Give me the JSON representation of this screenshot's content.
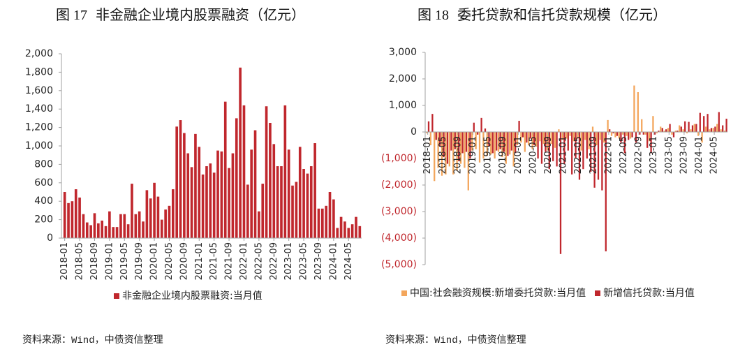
{
  "chart_data": [
    {
      "type": "bar",
      "figure_label": "图 17",
      "title": "非金融企业境内股票融资（亿元）",
      "x": [
        "2018-01",
        "2018-02",
        "2018-03",
        "2018-04",
        "2018-05",
        "2018-06",
        "2018-07",
        "2018-08",
        "2018-09",
        "2018-10",
        "2018-11",
        "2018-12",
        "2019-01",
        "2019-02",
        "2019-03",
        "2019-04",
        "2019-05",
        "2019-06",
        "2019-07",
        "2019-08",
        "2019-09",
        "2019-10",
        "2019-11",
        "2019-12",
        "2020-01",
        "2020-02",
        "2020-03",
        "2020-04",
        "2020-05",
        "2020-06",
        "2020-07",
        "2020-08",
        "2020-09",
        "2020-10",
        "2020-11",
        "2020-12",
        "2021-01",
        "2021-02",
        "2021-03",
        "2021-04",
        "2021-05",
        "2021-06",
        "2021-07",
        "2021-08",
        "2021-09",
        "2021-10",
        "2021-11",
        "2021-12",
        "2022-01",
        "2022-02",
        "2022-03",
        "2022-04",
        "2022-05",
        "2022-06",
        "2022-07",
        "2022-08",
        "2022-09",
        "2022-10",
        "2022-11",
        "2022-12",
        "2023-01",
        "2023-02",
        "2023-03",
        "2023-04",
        "2023-05",
        "2023-06",
        "2023-07",
        "2023-08",
        "2023-09",
        "2023-10",
        "2023-11",
        "2023-12",
        "2024-01",
        "2024-02",
        "2024-03",
        "2024-04",
        "2024-05",
        "2024-06",
        "2024-07",
        "2024-08"
      ],
      "x_tick_labels": [
        "2018-01",
        "2018-05",
        "2018-09",
        "2019-01",
        "2019-05",
        "2019-09",
        "2020-01",
        "2020-05",
        "2020-09",
        "2021-01",
        "2021-05",
        "2021-09",
        "2022-01",
        "2022-05",
        "2022-09",
        "2023-01",
        "2023-05",
        "2023-09",
        "2024-01",
        "2024-05"
      ],
      "ylim": [
        0,
        2000
      ],
      "y_ticks": [
        0,
        200,
        400,
        600,
        800,
        1000,
        1200,
        1400,
        1600,
        1800,
        2000
      ],
      "y_tick_labels": [
        "0",
        "200",
        "400",
        "600",
        "800",
        "1,000",
        "1,200",
        "1,400",
        "1,600",
        "1,800",
        "2,000"
      ],
      "series": [
        {
          "name": "非金融企业境内股票融资:当月值",
          "color": "#c0272d",
          "values": [
            500,
            380,
            400,
            530,
            440,
            260,
            170,
            140,
            270,
            160,
            190,
            130,
            290,
            120,
            120,
            260,
            260,
            150,
            590,
            260,
            290,
            180,
            520,
            430,
            600,
            450,
            200,
            310,
            350,
            530,
            1210,
            1280,
            1140,
            920,
            770,
            1130,
            990,
            690,
            780,
            810,
            710,
            950,
            940,
            1480,
            760,
            920,
            1300,
            1850,
            1440,
            580,
            960,
            1170,
            290,
            590,
            1430,
            1250,
            1020,
            780,
            780,
            1440,
            960,
            570,
            610,
            990,
            750,
            700,
            780,
            1030,
            320,
            320,
            350,
            500,
            420,
            110,
            230,
            180,
            110,
            150,
            230,
            130
          ]
        }
      ],
      "legend": "bottom",
      "grid": false,
      "source": "资料来源：Wind，中债资信整理"
    },
    {
      "type": "bar",
      "figure_label": "图 18",
      "title": "委托贷款和信托贷款规模（亿元）",
      "x": [
        "2018-01",
        "2018-02",
        "2018-03",
        "2018-04",
        "2018-05",
        "2018-06",
        "2018-07",
        "2018-08",
        "2018-09",
        "2018-10",
        "2018-11",
        "2018-12",
        "2019-01",
        "2019-02",
        "2019-03",
        "2019-04",
        "2019-05",
        "2019-06",
        "2019-07",
        "2019-08",
        "2019-09",
        "2019-10",
        "2019-11",
        "2019-12",
        "2020-01",
        "2020-02",
        "2020-03",
        "2020-04",
        "2020-05",
        "2020-06",
        "2020-07",
        "2020-08",
        "2020-09",
        "2020-10",
        "2020-11",
        "2020-12",
        "2021-01",
        "2021-02",
        "2021-03",
        "2021-04",
        "2021-05",
        "2021-06",
        "2021-07",
        "2021-08",
        "2021-09",
        "2021-10",
        "2021-11",
        "2021-12",
        "2022-01",
        "2022-02",
        "2022-03",
        "2022-04",
        "2022-05",
        "2022-06",
        "2022-07",
        "2022-08",
        "2022-09",
        "2022-10",
        "2022-11",
        "2022-12",
        "2023-01",
        "2023-02",
        "2023-03",
        "2023-04",
        "2023-05",
        "2023-06",
        "2023-07",
        "2023-08",
        "2023-09",
        "2023-10",
        "2023-11",
        "2023-12",
        "2024-01",
        "2024-02",
        "2024-03",
        "2024-04",
        "2024-05",
        "2024-06",
        "2024-07",
        "2024-08"
      ],
      "x_tick_labels": [
        "2018-01",
        "2018-05",
        "2018-09",
        "2019-01",
        "2019-05",
        "2019-09",
        "2020-01",
        "2020-05",
        "2020-09",
        "2021-01",
        "2021-05",
        "2021-09",
        "2022-01",
        "2022-05",
        "2022-09",
        "2023-01",
        "2023-05",
        "2023-09",
        "2024-01",
        "2024-05"
      ],
      "ylim": [
        -5000,
        3000
      ],
      "y_ticks": [
        3000,
        2000,
        1000,
        0,
        -1000,
        -2000,
        -3000,
        -4000,
        -5000
      ],
      "y_tick_labels": [
        "3,000",
        "2,000",
        "1,000",
        "0",
        "(1,000)",
        "(2,000)",
        "(3,000)",
        "(4,000)",
        "(5,000)"
      ],
      "negative_label_color": "#c0272d",
      "series": [
        {
          "name": "中国:社会融资规模:新增委托贷款:当月值",
          "color": "#f3a65c",
          "values": [
            -50,
            -500,
            -1850,
            -1350,
            -1650,
            -1600,
            -1300,
            -1600,
            -1450,
            -1200,
            -1350,
            -2200,
            -700,
            -650,
            -1150,
            -1000,
            -900,
            -850,
            -1000,
            -750,
            -950,
            -1200,
            -850,
            -1300,
            -500,
            -400,
            -750,
            -500,
            -650,
            -550,
            -350,
            -450,
            -700,
            -450,
            -600,
            100,
            -300,
            -250,
            -150,
            -350,
            -250,
            -700,
            -300,
            -650,
            200,
            -500,
            -300,
            -400,
            450,
            -150,
            -200,
            -250,
            -100,
            -150,
            -250,
            1750,
            1500,
            480,
            -100,
            -350,
            600,
            -50,
            200,
            50,
            150,
            -100,
            50,
            250,
            100,
            -50,
            100,
            300,
            -150,
            -400,
            200,
            100,
            150,
            300,
            100,
            50
          ]
        },
        {
          "name": "新增信托贷款:当月值",
          "color": "#c0272d",
          "values": [
            400,
            680,
            -300,
            -550,
            -950,
            -1200,
            -700,
            -650,
            -1100,
            -800,
            -750,
            -1000,
            350,
            -100,
            530,
            130,
            -550,
            -800,
            -700,
            -650,
            -750,
            -900,
            -700,
            -800,
            420,
            -200,
            -400,
            -250,
            -500,
            -1000,
            -1200,
            -750,
            -1400,
            -1100,
            -1300,
            -4600,
            -1200,
            -700,
            -1600,
            -1000,
            -1800,
            -1400,
            -1000,
            -1500,
            -2100,
            -1800,
            -2200,
            -4500,
            100,
            -50,
            -150,
            -400,
            -800,
            -300,
            -200,
            -400,
            -100,
            -100,
            -600,
            -800,
            -100,
            50,
            150,
            100,
            300,
            -200,
            50,
            200,
            400,
            380,
            250,
            300,
            720,
            600,
            680,
            150,
            200,
            750,
            250,
            500
          ]
        }
      ],
      "legend": "bottom",
      "grid": false,
      "source": "资料来源：Wind，中债资信整理"
    }
  ]
}
